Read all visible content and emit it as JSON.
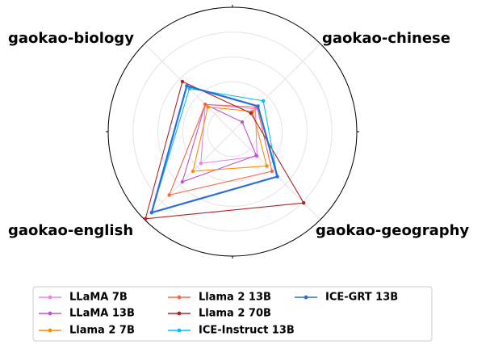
{
  "chart_data": {
    "type": "radar",
    "axes": [
      "gaokao-chinese",
      "gaokao-geography",
      "gaokao-english",
      "gaokao-biology"
    ],
    "rlim": [
      0,
      1
    ],
    "grid": true,
    "legend_position": "bottom",
    "legend_columns": 3,
    "series": [
      {
        "name": "LLaMA 7B",
        "color": "#ee82ee",
        "values": [
          0.26,
          0.28,
          0.36,
          0.31
        ]
      },
      {
        "name": "LLaMA 13B",
        "color": "#ba55d3",
        "values": [
          0.11,
          0.27,
          0.57,
          0.31
        ]
      },
      {
        "name": "Llama 2 7B",
        "color": "#ff8c00",
        "values": [
          0.23,
          0.39,
          0.45,
          0.28
        ]
      },
      {
        "name": "Llama 2 13B",
        "color": "#ff6347",
        "values": [
          0.28,
          0.45,
          0.72,
          0.31
        ]
      },
      {
        "name": "Llama 2 70B",
        "color": "#b22222",
        "values": [
          0.21,
          0.81,
          0.99,
          0.57
        ]
      },
      {
        "name": "ICE-Instruct 13B",
        "color": "#00bfff",
        "values": [
          0.35,
          0.51,
          0.92,
          0.49
        ]
      },
      {
        "name": "ICE-GRT 13B",
        "color": "#2a6fdb",
        "values": [
          0.29,
          0.51,
          0.92,
          0.52
        ]
      }
    ]
  }
}
